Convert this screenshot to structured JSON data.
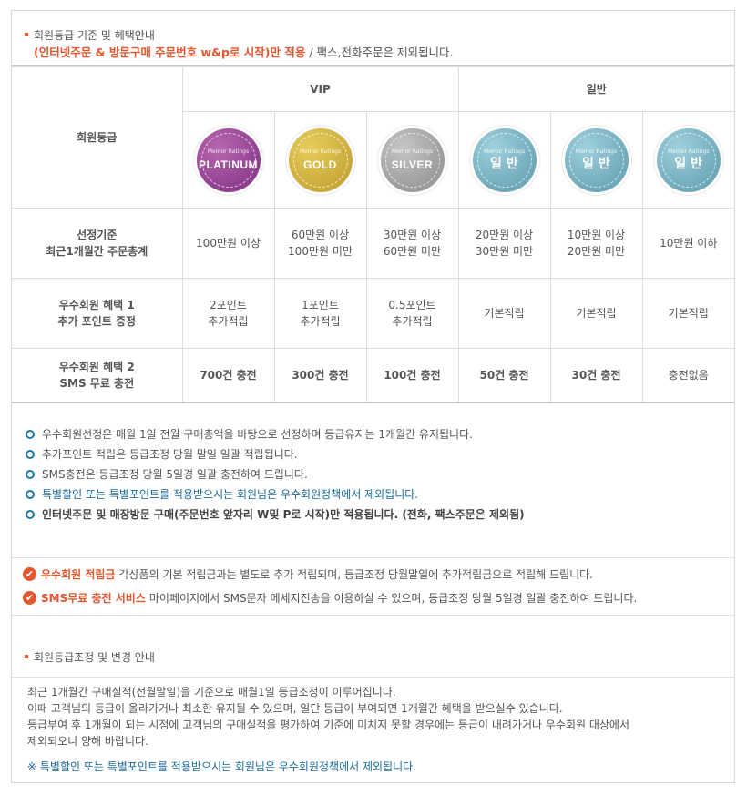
{
  "section1": {
    "title": "회원등급 기준 및 혜택안내",
    "notice_red": "(인터넷주문 & 방문구매 주문번호 w&p로 시작)만 적용",
    "notice_rest": " / 팩스,전화주문은 제외됩니다."
  },
  "table": {
    "group_vip": "VIP",
    "group_general": "일반",
    "row_grade_label": "회원등급",
    "badges": [
      {
        "small": "Memor Ratings",
        "big": "PLATINUM",
        "color": "#8e3f8e",
        "color2": "#b766b0",
        "kr": false
      },
      {
        "small": "Memor Ratings",
        "big": "GOLD",
        "color": "#c9a93a",
        "color2": "#e6cc5c",
        "kr": false
      },
      {
        "small": "Memor Ratings",
        "big": "SILVER",
        "color": "#9b9b9b",
        "color2": "#c6c6c6",
        "kr": false
      },
      {
        "small": "Memor Ratings",
        "big": "일 반",
        "color": "#6fa9b9",
        "color2": "#9fd0dd",
        "kr": true
      },
      {
        "small": "Memor Ratings",
        "big": "일 반",
        "color": "#6fa9b9",
        "color2": "#9fd0dd",
        "kr": true
      },
      {
        "small": "Memor Ratings",
        "big": "일 반",
        "color": "#6fa9b9",
        "color2": "#9fd0dd",
        "kr": true
      }
    ],
    "row_criteria_label_1": "선정기준",
    "row_criteria_label_2": "최근1개월간 주문총계",
    "criteria": [
      [
        "100만원 이상",
        ""
      ],
      [
        "60만원 이상",
        "100만원 미만"
      ],
      [
        "30만원 이상",
        "60만원 미만"
      ],
      [
        "20만원 이상",
        "30만원 미만"
      ],
      [
        "10만원 이상",
        "20만원 미만"
      ],
      [
        "10만원 이하",
        ""
      ]
    ],
    "row_benefit1_label_1": "우수회원 혜택 1",
    "row_benefit1_label_2": "추가 포인트 증정",
    "benefit1": [
      [
        "2포인트",
        "추가적립"
      ],
      [
        "1포인트",
        "추가적립"
      ],
      [
        "0.5포인트",
        "추가적립"
      ],
      [
        "기본적립",
        ""
      ],
      [
        "기본적립",
        ""
      ],
      [
        "기본적립",
        ""
      ]
    ],
    "row_benefit2_label_1": "우수회원 혜택 2",
    "row_benefit2_label_2": "SMS 무료 충전",
    "benefit2": [
      "700건 충전",
      "300건 충전",
      "100건 충전",
      "50건 충전",
      "30건 충전",
      "충전없음"
    ]
  },
  "notes": [
    "우수회원선정은 매월 1일 전월 구매총액을 바탕으로 선정하며 등급유지는 1개월간 유지됩니다.",
    "추가포인트 적립은 등급조정 당월 말일 일괄 적립됩니다.",
    "SMS충전은 등급조정 당월 5일경 일괄 충전하여 드립니다.",
    "특별할인 또는 특별포인트를 적용받으시는 회원님은 우수회원정책에서 제외됩니다.",
    "인터넷주문 및 매장방문 구매(주문번호 앞자리 W및 P로 시작)만 적용됩니다. (전화, 팩스주문은 제외됨)"
  ],
  "benefits": [
    {
      "label": "우수회원 적립금",
      "text": "각상품의 기본 적립금과는 별도로 추가 적립되며, 등급조정 당월말일에 추가적립금으로 적립해 드립니다."
    },
    {
      "label": "SMS무료 충전 서비스",
      "text": "마이페이지에서 SMS문자 메세지전송을 이용하실 수 있으며, 등급조정 당월 5일경 일괄 충전하여 드립니다."
    }
  ],
  "section2": {
    "title": "회원등급조정 및 변경 안내",
    "lines": [
      "최근 1개월간 구매실적(전월말일)을 기준으로 매월1일 등급조정이 이루어집니다.",
      "이때 고객님의 등급이 올라가거나 최소한 유지될 수 있으며, 일단 등급이 부여되면 1개월간 혜택을 받으실수 있습니다.",
      "등급부여 후 1개월이 되는 시점에 고객님의 구매실적을 평가하여 기준에 미치지 못할 경우에는 등급이 내려가거나 우수회원 대상에서",
      "제외되오니 양해 바랍니다."
    ],
    "footnote": "※ 특별할인 또는 특별포인트를 적용받으시는 회원님은 우수회원정책에서 제외됩니다."
  }
}
